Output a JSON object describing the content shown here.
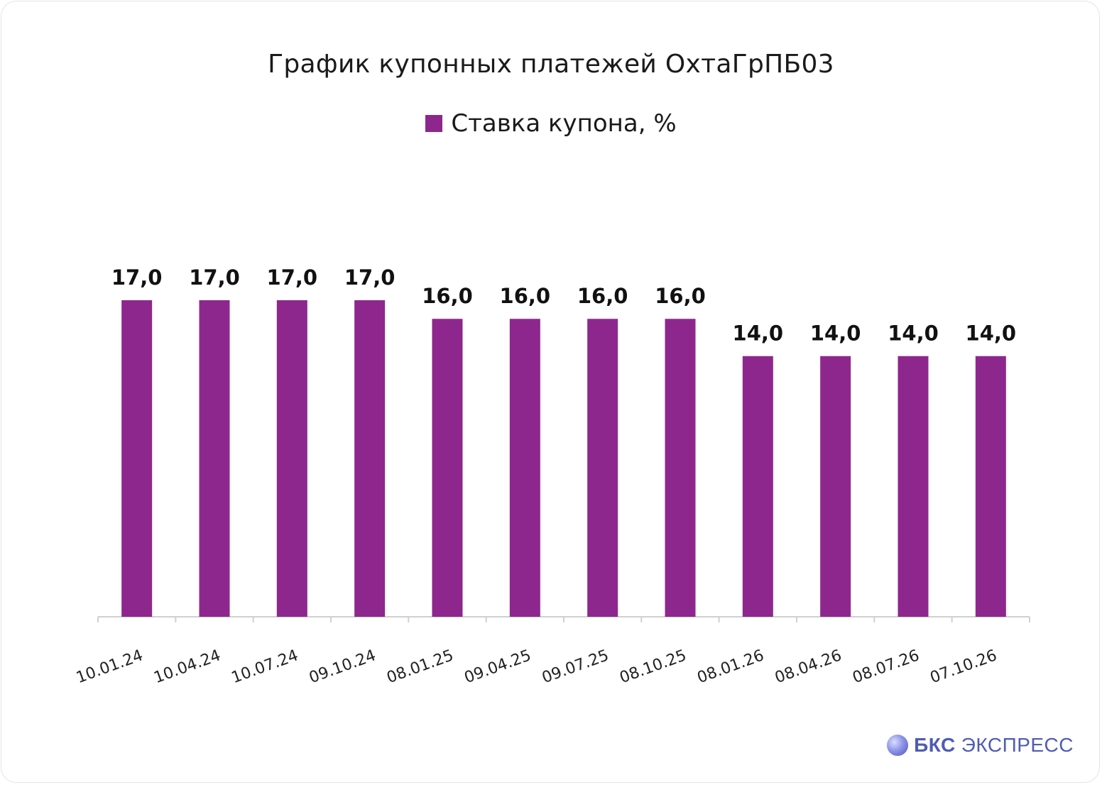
{
  "chart_data": {
    "type": "bar",
    "title": "График купонных платежей ОхтаГрПБ03",
    "series": [
      {
        "name": "Ставка купона, %",
        "color": "#8e278d",
        "values": [
          17.0,
          17.0,
          17.0,
          17.0,
          16.0,
          16.0,
          16.0,
          16.0,
          14.0,
          14.0,
          14.0,
          14.0
        ],
        "labels": [
          "17,0",
          "17,0",
          "17,0",
          "17,0",
          "16,0",
          "16,0",
          "16,0",
          "16,0",
          "14,0",
          "14,0",
          "14,0",
          "14,0"
        ]
      }
    ],
    "categories": [
      "10.01.24",
      "10.04.24",
      "10.07.24",
      "09.10.24",
      "08.01.25",
      "09.04.25",
      "09.07.25",
      "08.10.25",
      "08.01.26",
      "08.04.26",
      "08.07.26",
      "07.10.26"
    ],
    "xlabel": "",
    "ylabel": "",
    "ylim": [
      0,
      20
    ],
    "grid": false,
    "legend_position": "top-center",
    "y_axis_visible": false
  },
  "brand": {
    "name_bold": "БКС",
    "name_rest": "ЭКСПРЕСС"
  }
}
